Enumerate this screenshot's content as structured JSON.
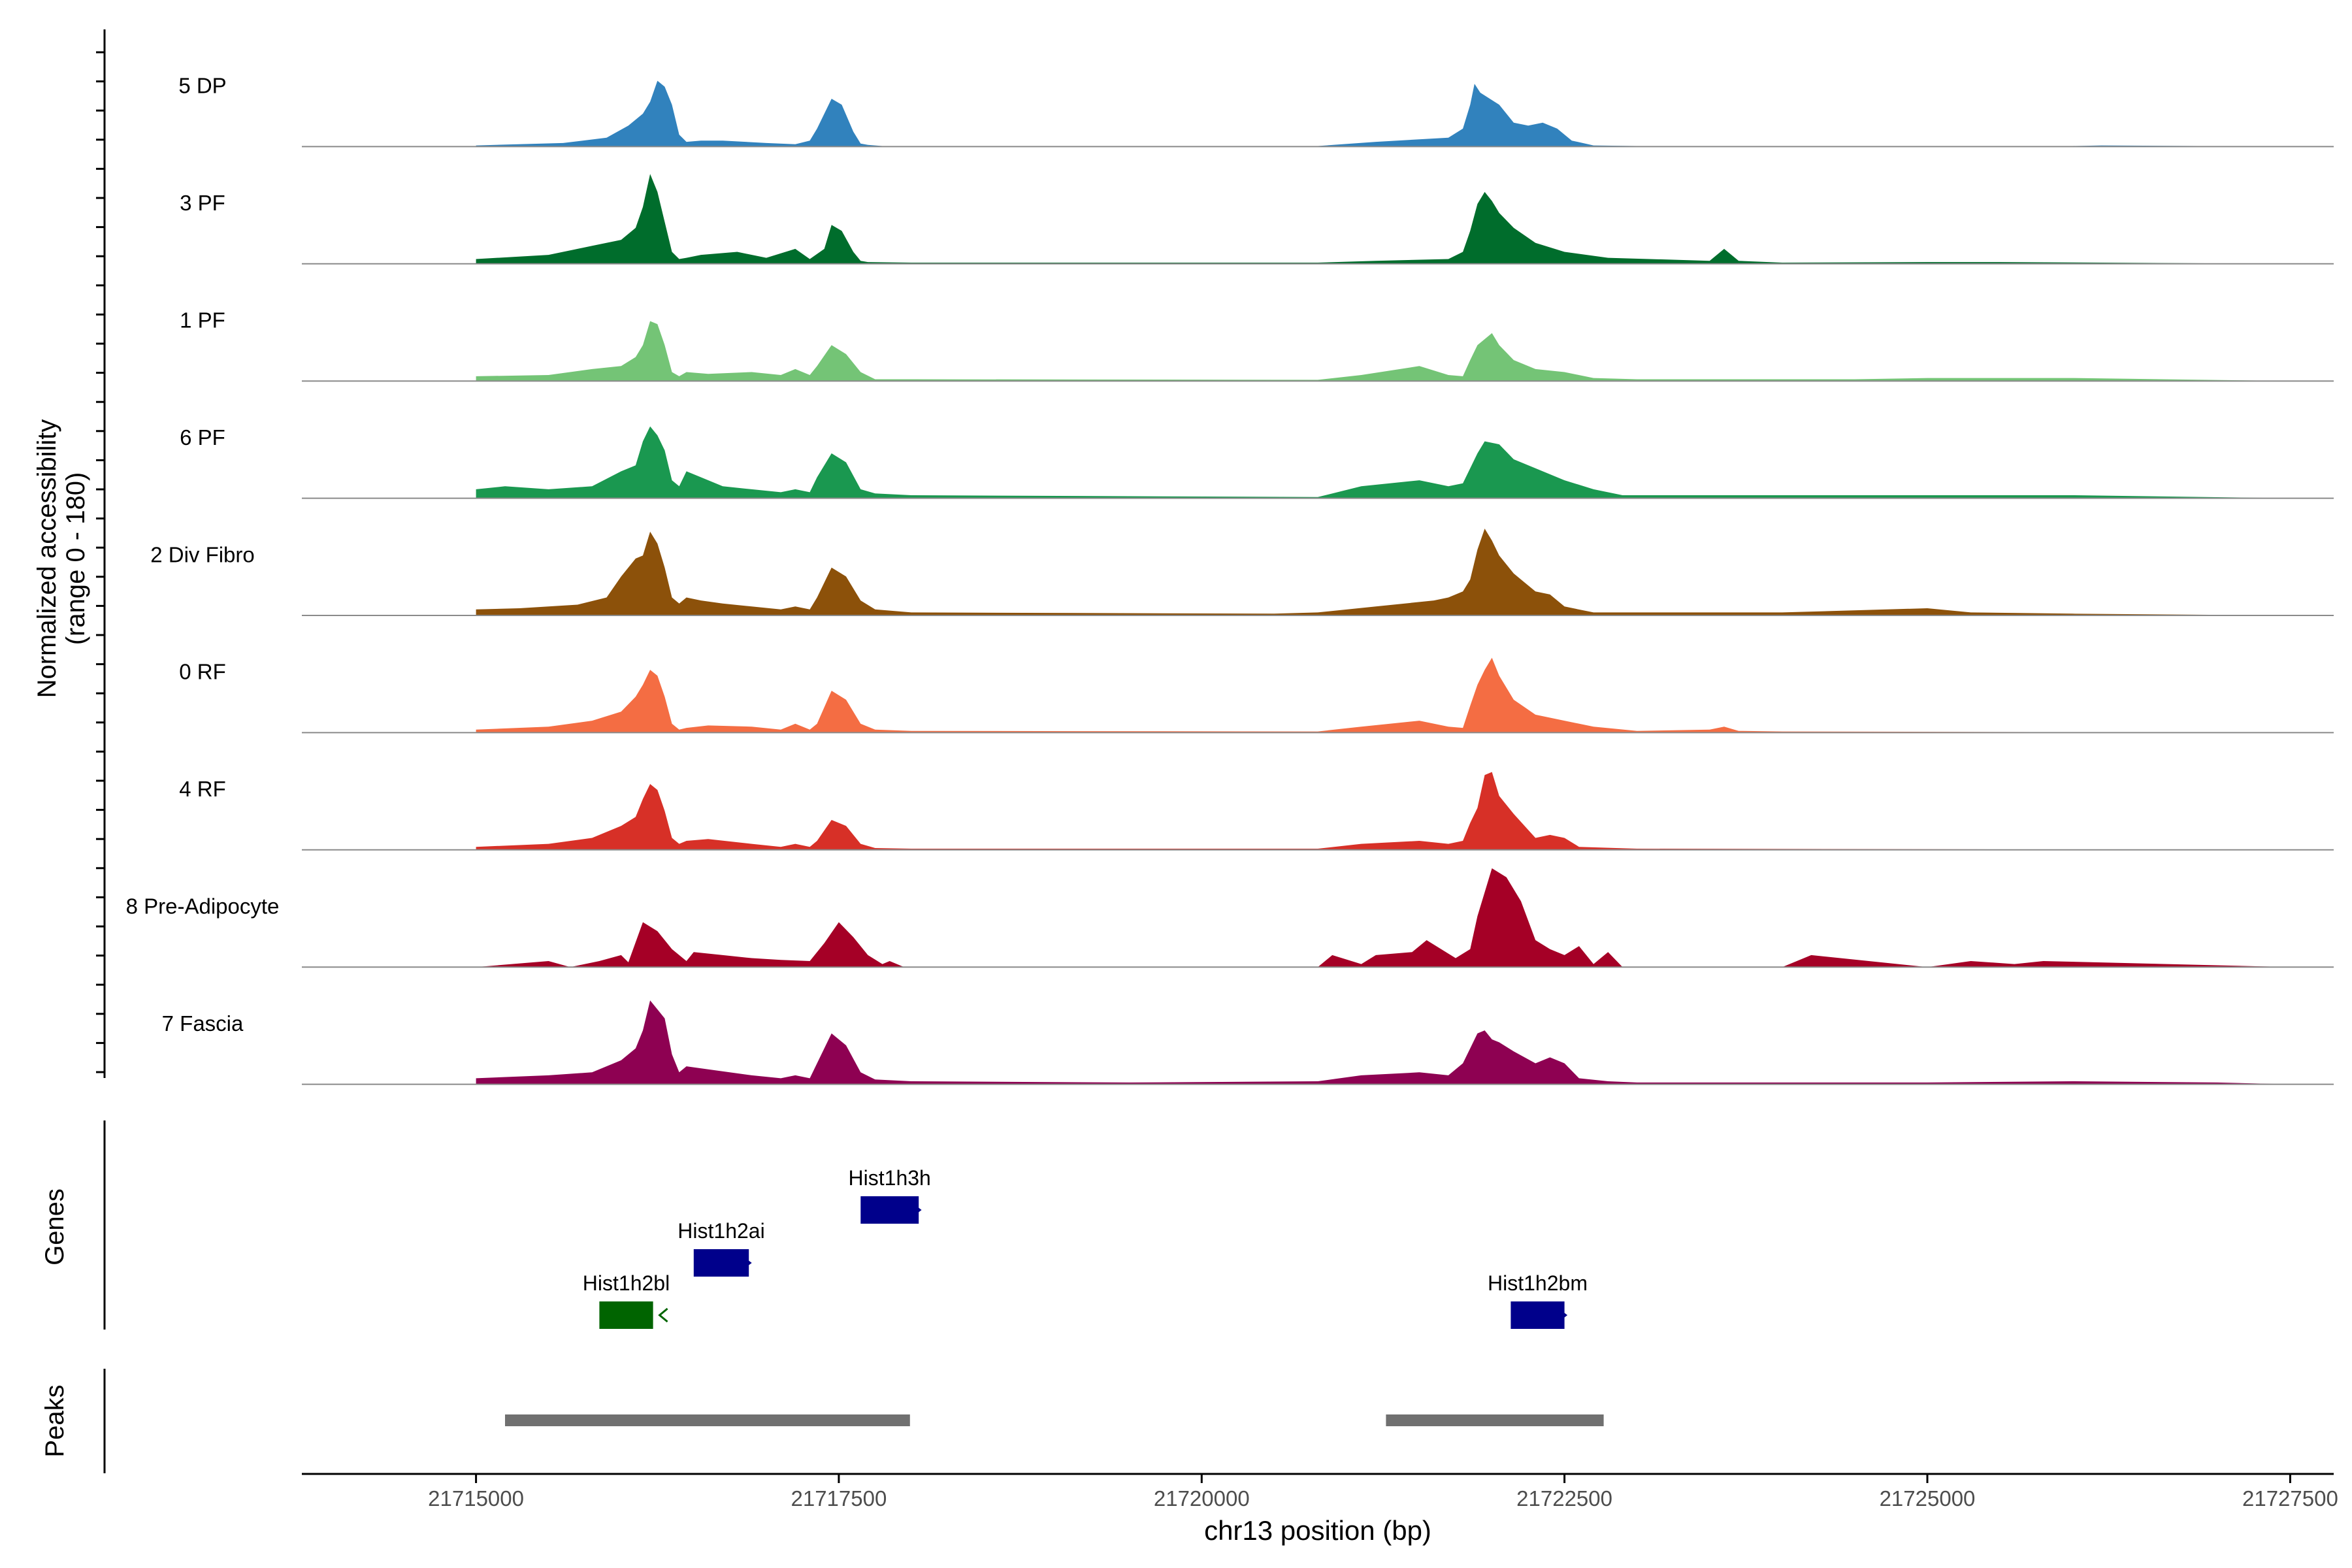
{
  "chart_data": {
    "type": "area",
    "title": "",
    "ylabel_line1": "Normalized accessibility",
    "ylabel_line2": "(range 0 - 180)",
    "xlabel": "chr13 position (bp)",
    "xlim": [
      21713800,
      21727800
    ],
    "ylim": [
      0,
      180
    ],
    "x_ticks": [
      21715000,
      21717500,
      21720000,
      21722500,
      21725000,
      21727500
    ],
    "x_tick_labels": [
      "21715000",
      "21717500",
      "21720000",
      "21722500",
      "21725000",
      "21727500"
    ],
    "tracks": [
      {
        "name": "5 DP",
        "color": "#3182bd",
        "x": [
          21715000,
          21715600,
          21715900,
          21716050,
          21716150,
          21716200,
          21716250,
          21716300,
          21716350,
          21716400,
          21716450,
          21716550,
          21716700,
          21717000,
          21717200,
          21717300,
          21717350,
          21717450,
          21717520,
          21717600,
          21717650,
          21717700,
          21717800,
          21718000,
          21720800,
          21721200,
          21721700,
          21721800,
          21721850,
          21721880,
          21721920,
          21722050,
          21722150,
          21722250,
          21722350,
          21722450,
          21722550,
          21722700,
          21723000,
          21724000,
          21726000,
          21726200,
          21727500
        ],
        "y": [
          2,
          6,
          15,
          35,
          55,
          75,
          110,
          100,
          70,
          20,
          8,
          10,
          10,
          6,
          4,
          10,
          30,
          80,
          70,
          25,
          5,
          3,
          1,
          1,
          1,
          8,
          15,
          30,
          70,
          105,
          90,
          70,
          40,
          35,
          40,
          30,
          10,
          2,
          1,
          1,
          1,
          2,
          0
        ]
      },
      {
        "name": "3 PF",
        "color": "#006d2c",
        "x": [
          21715000,
          21715500,
          21715800,
          21716000,
          21716100,
          21716150,
          21716200,
          21716250,
          21716300,
          21716350,
          21716400,
          21716450,
          21716550,
          21716800,
          21717000,
          21717200,
          21717300,
          21717400,
          21717450,
          21717520,
          21717600,
          21717650,
          21717700,
          21718000,
          21720800,
          21721200,
          21721700,
          21721800,
          21721850,
          21721900,
          21721950,
          21722000,
          21722050,
          21722150,
          21722300,
          21722500,
          21722800,
          21723500,
          21723600,
          21723700,
          21724000,
          21725000,
          21725500,
          21726200,
          21727500
        ],
        "y": [
          8,
          15,
          30,
          40,
          60,
          95,
          150,
          120,
          70,
          20,
          8,
          10,
          15,
          20,
          10,
          25,
          8,
          25,
          65,
          55,
          20,
          5,
          3,
          2,
          2,
          5,
          8,
          20,
          55,
          100,
          120,
          105,
          85,
          60,
          35,
          20,
          10,
          5,
          25,
          5,
          2,
          3,
          3,
          2,
          0
        ]
      },
      {
        "name": "1 PF",
        "color": "#74c476",
        "x": [
          21715000,
          21715500,
          21715800,
          21716000,
          21716100,
          21716150,
          21716200,
          21716250,
          21716300,
          21716350,
          21716400,
          21716450,
          21716600,
          21716900,
          21717100,
          21717200,
          21717300,
          21717350,
          21717450,
          21717550,
          21717650,
          21717750,
          21718000,
          21720800,
          21721100,
          21721500,
          21721700,
          21721800,
          21721850,
          21721900,
          21722000,
          21722050,
          21722150,
          21722300,
          21722500,
          21722700,
          21723000,
          21724500,
          21725000,
          21726000,
          21727500
        ],
        "y": [
          8,
          10,
          20,
          25,
          40,
          60,
          100,
          95,
          60,
          15,
          8,
          15,
          12,
          15,
          10,
          20,
          10,
          25,
          60,
          45,
          15,
          3,
          3,
          2,
          10,
          25,
          10,
          8,
          35,
          60,
          80,
          60,
          35,
          20,
          15,
          5,
          3,
          3,
          5,
          5,
          0
        ]
      },
      {
        "name": "6 PF",
        "color": "#1a9850",
        "x": [
          21715000,
          21715200,
          21715500,
          21715800,
          21716000,
          21716100,
          21716150,
          21716200,
          21716250,
          21716300,
          21716350,
          21716400,
          21716450,
          21716550,
          21716700,
          21716900,
          21717100,
          21717200,
          21717300,
          21717350,
          21717450,
          21717550,
          21717650,
          21717750,
          21718000,
          21720800,
          21721100,
          21721500,
          21721700,
          21721800,
          21721850,
          21721900,
          21721950,
          21722050,
          21722150,
          21722300,
          21722500,
          21722700,
          21722900,
          21723500,
          21724000,
          21725000,
          21726000,
          21727500
        ],
        "y": [
          15,
          20,
          15,
          20,
          45,
          55,
          95,
          120,
          105,
          80,
          30,
          20,
          45,
          35,
          20,
          15,
          10,
          15,
          10,
          35,
          75,
          60,
          15,
          8,
          5,
          2,
          20,
          30,
          20,
          25,
          50,
          75,
          95,
          90,
          65,
          50,
          30,
          15,
          5,
          5,
          5,
          5,
          5,
          0
        ]
      },
      {
        "name": "2 Div Fibro",
        "color": "#8c510a",
        "x": [
          21715000,
          21715300,
          21715700,
          21715900,
          21716000,
          21716100,
          21716150,
          21716200,
          21716250,
          21716300,
          21716350,
          21716400,
          21716450,
          21716550,
          21716700,
          21716900,
          21717100,
          21717200,
          21717300,
          21717350,
          21717450,
          21717550,
          21717650,
          21717750,
          21718000,
          21720500,
          21720800,
          21721200,
          21721600,
          21721700,
          21721800,
          21721850,
          21721900,
          21721950,
          21722000,
          21722050,
          21722150,
          21722300,
          21722400,
          21722500,
          21722700,
          21723000,
          21724000,
          21725000,
          21725300,
          21726000,
          21727500
        ],
        "y": [
          10,
          12,
          18,
          30,
          65,
          95,
          100,
          140,
          120,
          80,
          30,
          20,
          30,
          25,
          20,
          15,
          10,
          15,
          10,
          30,
          80,
          65,
          25,
          10,
          5,
          3,
          5,
          15,
          25,
          30,
          40,
          60,
          110,
          145,
          125,
          100,
          70,
          40,
          35,
          15,
          5,
          5,
          5,
          12,
          5,
          3,
          0
        ]
      },
      {
        "name": "0 RF",
        "color": "#f46d43",
        "x": [
          21715000,
          21715500,
          21715800,
          21716000,
          21716100,
          21716150,
          21716200,
          21716250,
          21716300,
          21716350,
          21716400,
          21716450,
          21716600,
          21716900,
          21717100,
          21717200,
          21717300,
          21717350,
          21717450,
          21717550,
          21717650,
          21717750,
          21718000,
          21720800,
          21721100,
          21721500,
          21721700,
          21721800,
          21721850,
          21721900,
          21721950,
          21722000,
          21722050,
          21722150,
          21722300,
          21722500,
          21722700,
          21723000,
          21723500,
          21723600,
          21723700,
          21724000,
          21727500
        ],
        "y": [
          5,
          10,
          20,
          35,
          60,
          80,
          105,
          95,
          60,
          15,
          5,
          8,
          12,
          10,
          5,
          15,
          5,
          15,
          70,
          55,
          15,
          5,
          3,
          2,
          10,
          20,
          10,
          8,
          45,
          80,
          105,
          125,
          95,
          55,
          30,
          20,
          10,
          3,
          5,
          10,
          3,
          2,
          0
        ]
      },
      {
        "name": "4 RF",
        "color": "#d73027",
        "x": [
          21715000,
          21715500,
          21715800,
          21716000,
          21716100,
          21716150,
          21716200,
          21716250,
          21716300,
          21716350,
          21716400,
          21716450,
          21716600,
          21716900,
          21717100,
          21717200,
          21717300,
          21717350,
          21717450,
          21717550,
          21717650,
          21717750,
          21718000,
          21720800,
          21721100,
          21721500,
          21721700,
          21721800,
          21721850,
          21721900,
          21721950,
          21722000,
          21722050,
          21722150,
          21722300,
          21722400,
          21722500,
          21722600,
          21723000,
          21727500
        ],
        "y": [
          5,
          10,
          20,
          40,
          55,
          85,
          110,
          100,
          65,
          20,
          10,
          15,
          18,
          10,
          5,
          10,
          5,
          15,
          50,
          40,
          10,
          3,
          2,
          2,
          10,
          15,
          10,
          15,
          45,
          70,
          125,
          130,
          90,
          60,
          20,
          25,
          20,
          5,
          2,
          0
        ]
      },
      {
        "name": "8 Pre-Adipocyte",
        "color": "#a50026",
        "x": [
          21715000,
          21715500,
          21715650,
          21715850,
          21716000,
          21716050,
          21716150,
          21716250,
          21716350,
          21716450,
          21716500,
          21716700,
          21716900,
          21717100,
          21717300,
          21717400,
          21717500,
          21717600,
          21717700,
          21717800,
          21717850,
          21717950,
          21720800,
          21720900,
          21721100,
          21721200,
          21721450,
          21721550,
          21721650,
          21721750,
          21721850,
          21721900,
          21722000,
          21722100,
          21722200,
          21722300,
          21722400,
          21722500,
          21722600,
          21722700,
          21722800,
          21722900,
          21724000,
          21724200,
          21725000,
          21725300,
          21725600,
          21725800,
          21727500
        ],
        "y": [
          0,
          10,
          0,
          10,
          20,
          8,
          75,
          60,
          30,
          10,
          25,
          20,
          15,
          12,
          10,
          40,
          75,
          50,
          20,
          5,
          10,
          0,
          0,
          20,
          5,
          20,
          25,
          45,
          30,
          15,
          30,
          85,
          165,
          150,
          110,
          45,
          30,
          20,
          35,
          5,
          25,
          0,
          0,
          20,
          0,
          10,
          5,
          10,
          0
        ]
      },
      {
        "name": "7 Fascia",
        "color": "#8e0152",
        "x": [
          21715000,
          21715500,
          21715800,
          21716000,
          21716100,
          21716150,
          21716200,
          21716250,
          21716300,
          21716350,
          21716400,
          21716450,
          21716600,
          21716900,
          21717100,
          21717200,
          21717300,
          21717350,
          21717450,
          21717550,
          21717650,
          21717750,
          21718000,
          21719500,
          21720800,
          21721100,
          21721500,
          21721700,
          21721800,
          21721850,
          21721900,
          21721950,
          21722000,
          21722050,
          21722150,
          21722300,
          21722400,
          21722500,
          21722600,
          21722800,
          21723000,
          21724000,
          21725000,
          21726000,
          21727000,
          21727500
        ],
        "y": [
          10,
          15,
          20,
          40,
          60,
          90,
          140,
          125,
          110,
          50,
          20,
          30,
          25,
          15,
          10,
          15,
          10,
          35,
          85,
          65,
          20,
          8,
          5,
          3,
          5,
          15,
          20,
          15,
          35,
          60,
          85,
          90,
          75,
          70,
          55,
          35,
          45,
          35,
          10,
          5,
          3,
          3,
          3,
          5,
          3,
          0
        ]
      }
    ],
    "genes_label": "Genes",
    "genes": [
      {
        "name": "Hist1h3h",
        "start": 21717650,
        "end": 21718050,
        "row": 0,
        "color": "#00008b",
        "strand": "+"
      },
      {
        "name": "Hist1h2ai",
        "start": 21716500,
        "end": 21716880,
        "row": 1,
        "color": "#00008b",
        "strand": "+"
      },
      {
        "name": "Hist1h2bl",
        "start": 21715850,
        "end": 21716220,
        "row": 2,
        "color": "#006400",
        "strand": "-"
      },
      {
        "name": "Hist1h2bm",
        "start": 21722130,
        "end": 21722500,
        "row": 2,
        "color": "#00008b",
        "strand": "+"
      }
    ],
    "peaks_label": "Peaks",
    "peaks": [
      {
        "start": 21715200,
        "end": 21717990
      },
      {
        "start": 21721270,
        "end": 21722770
      }
    ],
    "peak_color": "#707070"
  }
}
